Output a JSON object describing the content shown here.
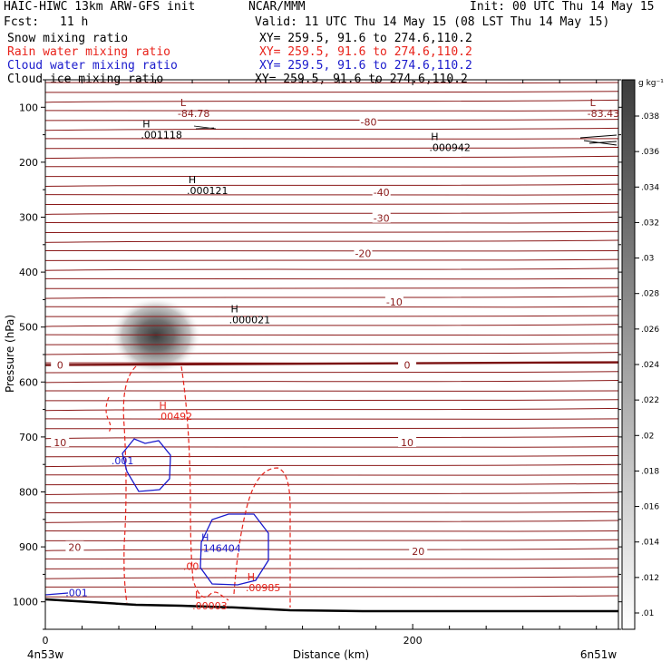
{
  "header": {
    "model": "HAIC-HIWC 13km ARW-GFS init",
    "org": "NCAR/MMM",
    "init": "Init: 00 UTC Thu 14 May 15",
    "fcst_label": "Fcst:",
    "fcst_value": "11 h",
    "valid": "Valid: 11 UTC Thu 14 May 15 (08 LST Thu 14 May 15)",
    "fields": [
      {
        "name": "Snow mixing ratio",
        "xy": "XY= 259.5, 91.6 to 274.6,110.2",
        "color": "#000000"
      },
      {
        "name": "Rain water mixing ratio",
        "xy": "XY= 259.5, 91.6 to 274.6,110.2",
        "color": "#e8231b"
      },
      {
        "name": "Cloud water mixing ratio",
        "xy": "XY= 259.5, 91.6 to 274.6,110.2",
        "color": "#1a1acc"
      },
      {
        "name": "Cloud ice mixing ratio",
        "xy": "XY= 259.5, 91.6 to 274.6,110.2",
        "color": "#000000"
      }
    ]
  },
  "chart_data": {
    "type": "contour-cross-section",
    "xlabel": "Distance (km)",
    "ylabel": "Pressure (hPa)",
    "x_ticks": [
      0,
      200
    ],
    "x_range_km": [
      0,
      312
    ],
    "y_ticks": [
      100,
      200,
      300,
      400,
      500,
      600,
      700,
      800,
      900,
      1000
    ],
    "y_range_hpa": [
      50,
      1050
    ],
    "x_endpoints": {
      "left": "4n53w",
      "right": "6n51w"
    },
    "colorbar": {
      "unit": "g kg⁻¹",
      "ticks": [
        ".01",
        ".012",
        ".014",
        ".016",
        ".018",
        ".02",
        ".022",
        ".024",
        ".026",
        ".028",
        ".03",
        ".032",
        ".034",
        ".036",
        ".038"
      ]
    },
    "temperature_labels": [
      {
        "text": "-80",
        "x": 176,
        "p": 127
      },
      {
        "text": "-40",
        "x": 183,
        "p": 255
      },
      {
        "text": "-30",
        "x": 183,
        "p": 302
      },
      {
        "text": "-20",
        "x": 173,
        "p": 366
      },
      {
        "text": "-10",
        "x": 190,
        "p": 454
      },
      {
        "text": "0",
        "x": 8,
        "p": 569
      },
      {
        "text": "0",
        "x": 197,
        "p": 569
      },
      {
        "text": "10",
        "x": 8,
        "p": 710
      },
      {
        "text": "10",
        "x": 197,
        "p": 710
      },
      {
        "text": "20",
        "x": 16,
        "p": 901
      },
      {
        "text": "20",
        "x": 203,
        "p": 908
      }
    ],
    "extrema": [
      {
        "letter": "L",
        "value": "-84.78",
        "x": 75,
        "p": 98,
        "color": "#8b1a1a"
      },
      {
        "letter": "L",
        "value": "-83.43",
        "x": 298,
        "p": 98,
        "color": "#8b1a1a"
      },
      {
        "letter": "H",
        "value": ".001118",
        "x": 55,
        "p": 137,
        "color": "#000000"
      },
      {
        "letter": "H",
        "value": ".000942",
        "x": 212,
        "p": 160,
        "color": "#000000"
      },
      {
        "letter": "H",
        "value": ".000121",
        "x": 80,
        "p": 238,
        "color": "#000000"
      },
      {
        "letter": "H",
        "value": ".000021",
        "x": 103,
        "p": 473,
        "color": "#000000"
      },
      {
        "letter": "H",
        "value": ".00492",
        "x": 64,
        "p": 649,
        "color": "#e8231b"
      },
      {
        "letter": "H",
        "value": ".146404",
        "x": 87,
        "p": 889,
        "color": "#1a1acc"
      },
      {
        "letter": "H",
        "value": ".00985",
        "x": 112,
        "p": 961,
        "color": "#e8231b"
      },
      {
        "letter": "L",
        "value": ".00003",
        "x": 83,
        "p": 994,
        "color": "#e8231b"
      }
    ],
    "contour_value_labels": [
      {
        "text": ".001",
        "x": 36,
        "p": 750,
        "color": "#1a1acc"
      },
      {
        "text": ".001",
        "x": 11,
        "p": 990,
        "color": "#1a1acc"
      },
      {
        "text": ".00",
        "x": 75,
        "p": 942,
        "color": "#e8231b"
      }
    ]
  }
}
